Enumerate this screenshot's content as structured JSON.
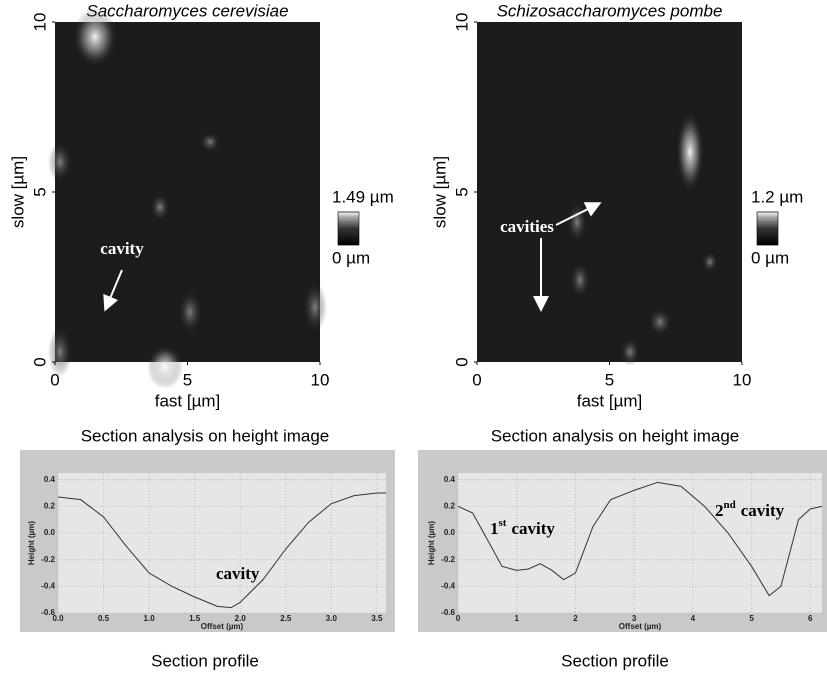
{
  "chart_data": [
    {
      "type": "heatmap",
      "title": "Saccharomyces cerevisiae",
      "xlabel": "fast [µm]",
      "ylabel": "slow [µm]",
      "xlim": [
        0,
        10
      ],
      "ylim": [
        0,
        10
      ],
      "xticks": [
        0,
        5,
        10
      ],
      "yticks": [
        0,
        5,
        10
      ],
      "colorbar": {
        "lim": [
          0,
          1.49
        ],
        "ticks": [
          {
            "value": 1.49,
            "label": "1.49 µm"
          },
          {
            "value": 0,
            "label": "0 µm"
          }
        ]
      },
      "annotations": [
        "cavity"
      ]
    },
    {
      "type": "heatmap",
      "title": "Schizosaccharomyces pombe",
      "xlabel": "fast [µm]",
      "ylabel": "slow [µm]",
      "xlim": [
        0,
        10
      ],
      "ylim": [
        0,
        10
      ],
      "xticks": [
        0,
        5,
        10
      ],
      "yticks": [
        0,
        5,
        10
      ],
      "colorbar": {
        "lim": [
          0,
          1.2
        ],
        "ticks": [
          {
            "value": 1.2,
            "label": "1.2 µm"
          },
          {
            "value": 0,
            "label": "0 µm"
          }
        ]
      },
      "annotations": [
        "cavities"
      ]
    },
    {
      "type": "line",
      "title": "Section analysis on height image",
      "caption": "Section profile",
      "xlabel": "Offset (µm)",
      "ylabel": "Height (µm)",
      "x": [
        0,
        0.25,
        0.5,
        0.75,
        1.0,
        1.25,
        1.5,
        1.75,
        1.9,
        2.0,
        2.25,
        2.5,
        2.75,
        3.0,
        3.25,
        3.5,
        3.6
      ],
      "values": [
        0.27,
        0.25,
        0.12,
        -0.1,
        -0.3,
        -0.4,
        -0.48,
        -0.55,
        -0.56,
        -0.52,
        -0.35,
        -0.12,
        0.08,
        0.22,
        0.28,
        0.3,
        0.3
      ],
      "color": "#333333",
      "xlim": [
        0,
        3.6
      ],
      "ylim": [
        -0.6,
        0.45
      ],
      "xticks": [
        {
          "value": 0,
          "label": "0.0"
        },
        0.5,
        {
          "value": 1,
          "label": "1.0"
        },
        1.5,
        {
          "value": 2,
          "label": "2.0"
        },
        2.5,
        {
          "value": 3,
          "label": "3.0"
        },
        3.5
      ],
      "yticks": [
        0.4,
        0.2,
        {
          "value": 0,
          "label": "0.0"
        },
        -0.2,
        -0.4,
        -0.6
      ],
      "annotations": [
        [
          "cavity"
        ]
      ]
    },
    {
      "type": "line",
      "title": "Section analysis on height image",
      "caption": "Section profile",
      "xlabel": "Offset (µm)",
      "ylabel": "Height (µm)",
      "x": [
        0,
        0.25,
        0.5,
        0.75,
        1.0,
        1.2,
        1.4,
        1.6,
        1.8,
        2.0,
        2.3,
        2.6,
        3.0,
        3.4,
        3.8,
        4.2,
        4.6,
        5.0,
        5.3,
        5.5,
        5.8,
        6.0,
        6.2
      ],
      "values": [
        0.2,
        0.15,
        -0.05,
        -0.25,
        -0.28,
        -0.27,
        -0.23,
        -0.28,
        -0.35,
        -0.3,
        0.05,
        0.25,
        0.32,
        0.38,
        0.35,
        0.2,
        0.0,
        -0.25,
        -0.47,
        -0.4,
        0.1,
        0.18,
        0.2
      ],
      "color": "#333333",
      "xlim": [
        0,
        6.2
      ],
      "ylim": [
        -0.6,
        0.45
      ],
      "xticks": [
        0,
        1,
        2,
        3,
        4,
        5,
        6
      ],
      "yticks": [
        0.4,
        0.2,
        {
          "value": 0,
          "label": "0.0"
        },
        -0.2,
        -0.4,
        -0.6
      ],
      "annotations": [
        [
          "1",
          "st",
          "cavity"
        ],
        [
          "2",
          "nd",
          "cavity"
        ]
      ]
    }
  ]
}
